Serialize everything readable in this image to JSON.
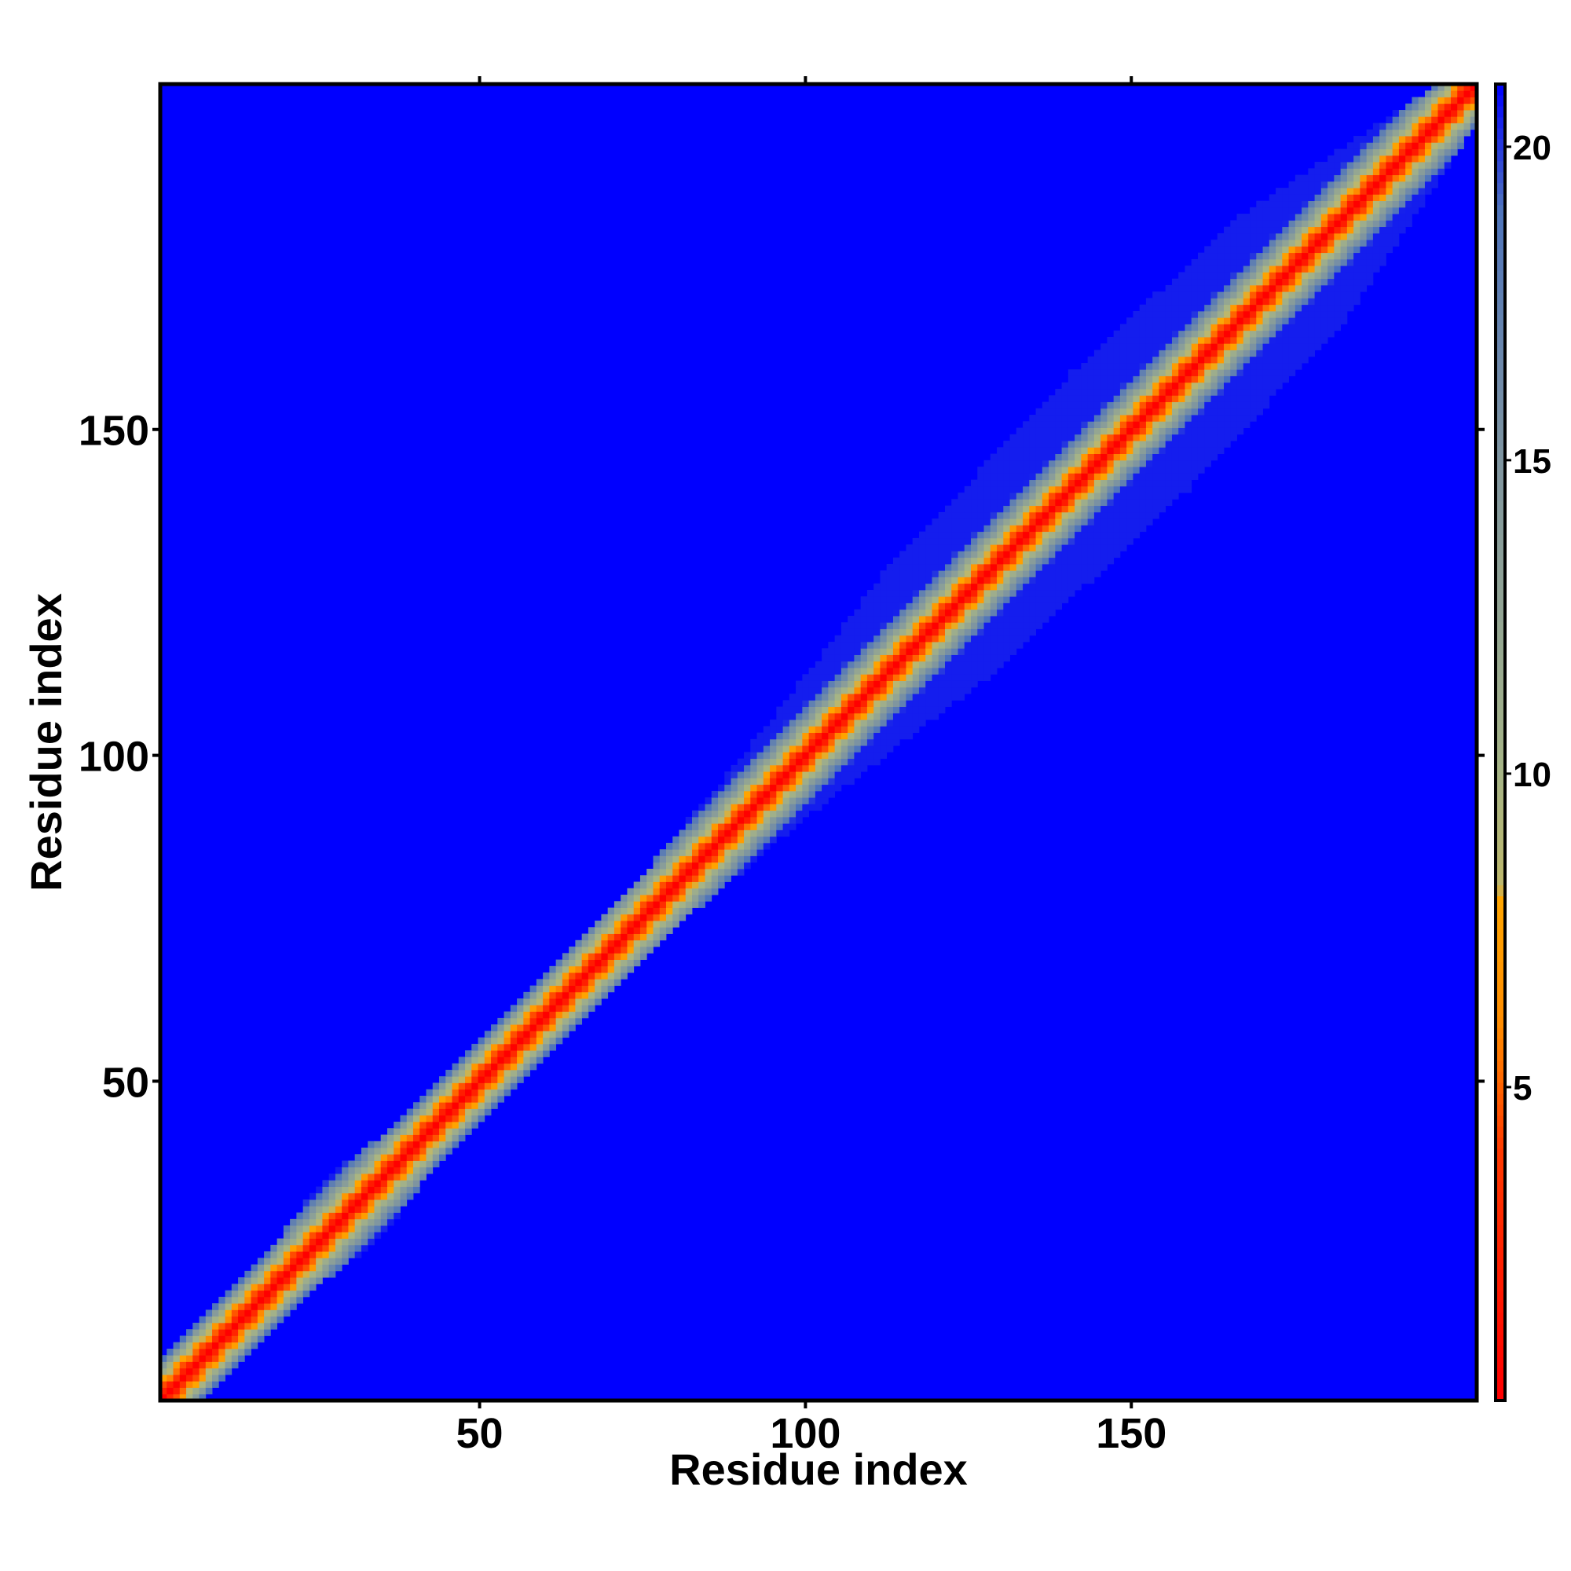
{
  "chart_data": {
    "type": "heatmap",
    "title": "",
    "xlabel": "Residue index",
    "ylabel": "Residue index",
    "n_residues": 203,
    "xlim": [
      1,
      203
    ],
    "ylim": [
      1,
      203
    ],
    "x_ticks": [
      50,
      100,
      150
    ],
    "y_ticks": [
      50,
      100,
      150
    ],
    "x_tick_labels": [
      "50",
      "100",
      "150"
    ],
    "y_tick_labels": [
      "50",
      "100",
      "150"
    ],
    "colorbar": {
      "range": [
        0,
        21
      ],
      "ticks": [
        5,
        10,
        15,
        20
      ],
      "tick_labels": [
        "5",
        "10",
        "15",
        "20"
      ],
      "stops": [
        {
          "value": 0,
          "color": "#ff0000"
        },
        {
          "value": 4,
          "color": "#ff3a00"
        },
        {
          "value": 6,
          "color": "#ff8c00"
        },
        {
          "value": 8,
          "color": "#ffa500"
        },
        {
          "value": 8.2,
          "color": "#bdb76b"
        },
        {
          "value": 10,
          "color": "#a6b486"
        },
        {
          "value": 15,
          "color": "#7f95a0"
        },
        {
          "value": 19,
          "color": "#4f74bb"
        },
        {
          "value": 21,
          "color": "#0000ff"
        }
      ]
    },
    "background_value": 21,
    "diagonal_value": 0,
    "band_halfwidth_profile": [
      {
        "residue": 1,
        "halfwidth": 6
      },
      {
        "residue": 20,
        "halfwidth": 6
      },
      {
        "residue": 30,
        "halfwidth": 9
      },
      {
        "residue": 40,
        "halfwidth": 6
      },
      {
        "residue": 60,
        "halfwidth": 6
      },
      {
        "residue": 80,
        "halfwidth": 7
      },
      {
        "residue": 92,
        "halfwidth": 9
      },
      {
        "residue": 105,
        "halfwidth": 12
      },
      {
        "residue": 120,
        "halfwidth": 16
      },
      {
        "residue": 150,
        "halfwidth": 18
      },
      {
        "residue": 175,
        "halfwidth": 16
      },
      {
        "residue": 190,
        "halfwidth": 10
      },
      {
        "residue": 203,
        "halfwidth": 5
      }
    ],
    "grid": false,
    "legend": "colorbar-right"
  }
}
